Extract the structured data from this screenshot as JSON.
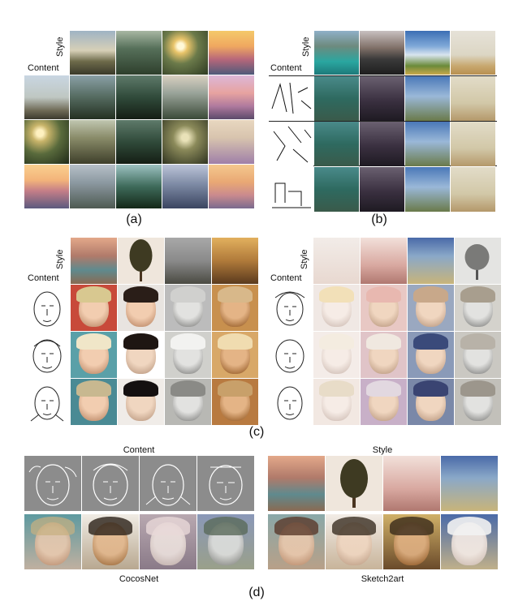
{
  "labels": {
    "style": "Style",
    "content": "Content"
  },
  "captions": {
    "a": "(a)",
    "b": "(b)",
    "c": "(c)",
    "d": "(d)"
  },
  "panel_d": {
    "content_title": "Content",
    "style_title": "Style",
    "method_left": "CocosNet",
    "method_right": "Sketch2art"
  }
}
